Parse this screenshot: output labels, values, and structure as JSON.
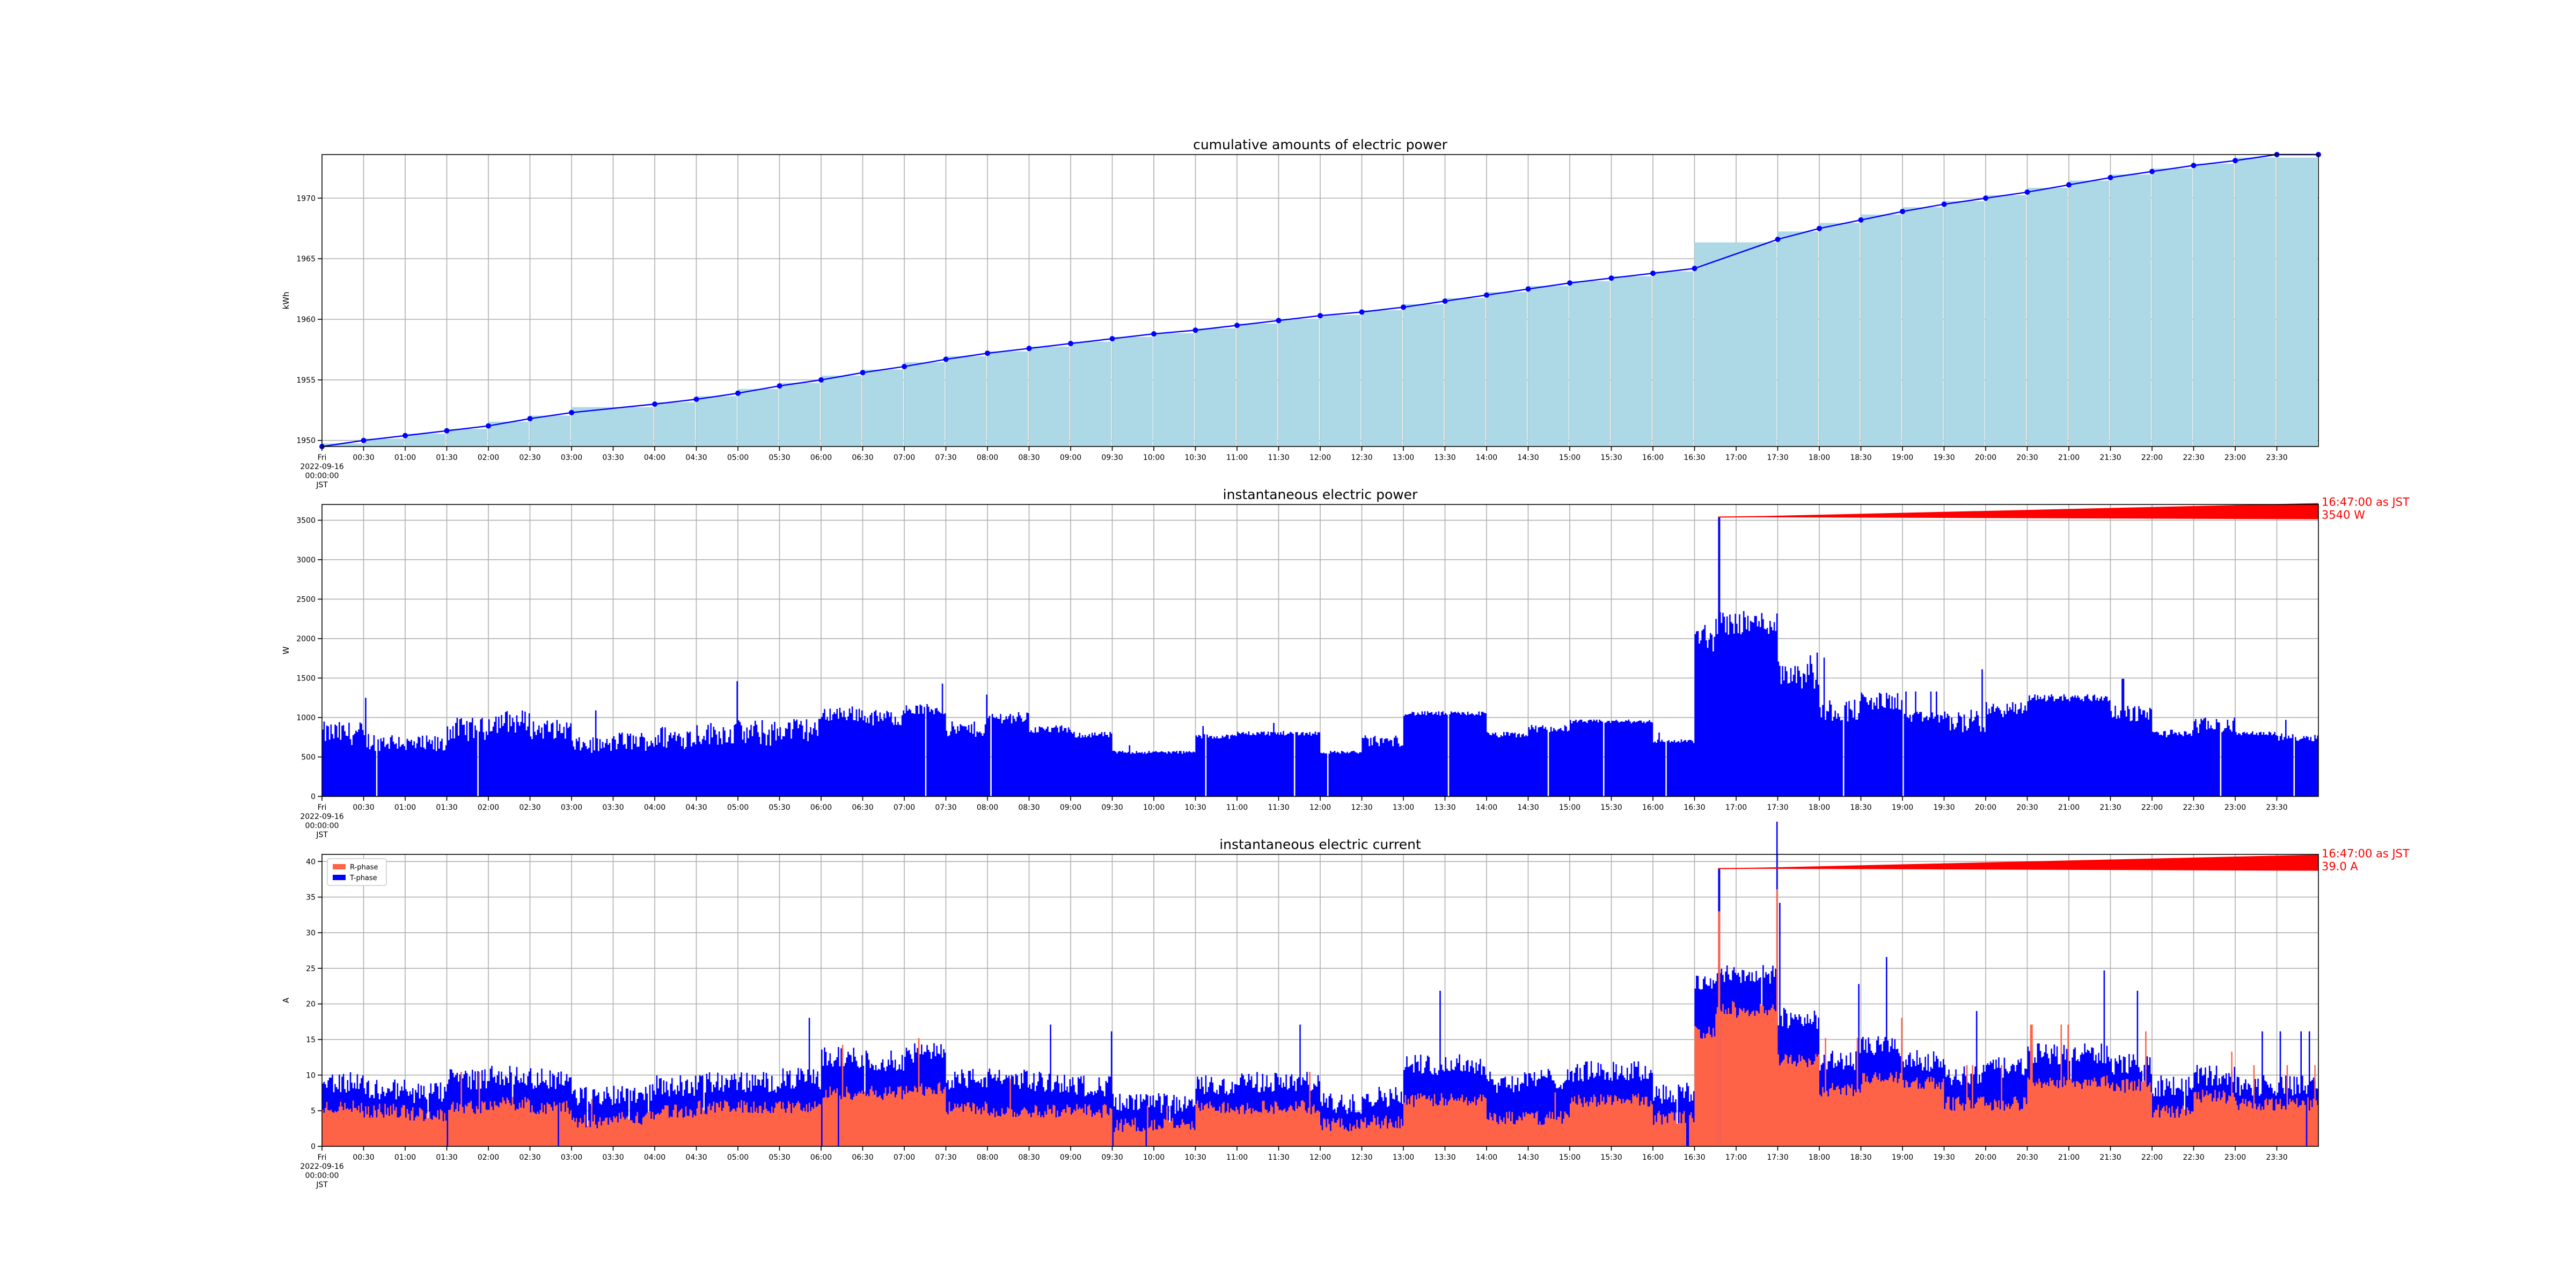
{
  "x_ticks": [
    "00:30",
    "01:00",
    "01:30",
    "02:00",
    "02:30",
    "03:00",
    "03:30",
    "04:00",
    "04:30",
    "05:00",
    "05:30",
    "06:00",
    "06:30",
    "07:00",
    "07:30",
    "08:00",
    "08:30",
    "09:00",
    "09:30",
    "10:00",
    "10:30",
    "11:00",
    "11:30",
    "12:00",
    "12:30",
    "13:00",
    "13:30",
    "14:00",
    "14:30",
    "15:00",
    "15:30",
    "16:00",
    "16:30",
    "17:00",
    "17:30",
    "18:00",
    "18:30",
    "19:00",
    "19:30",
    "20:00",
    "20:30",
    "21:00",
    "21:30",
    "22:00",
    "22:30",
    "23:00",
    "23:30"
  ],
  "x_start_label": [
    "Fri",
    "2022-09-16",
    "00:00:00",
    "JST"
  ],
  "colors": {
    "cumulative_fill": "#add8e6",
    "line": "#0000ff",
    "r_phase": "#ff6347",
    "t_phase": "#0000ff",
    "annotation": "#ff0000"
  },
  "chart_data": [
    {
      "type": "bar",
      "title": "cumulative amounts of electric power",
      "ylabel": "kWh",
      "xlabel": "",
      "grid": true,
      "x_range_hours": [
        0,
        24
      ],
      "ylim": [
        1949.5,
        1973.6
      ],
      "yticks": [
        1950,
        1955,
        1960,
        1965,
        1970
      ],
      "x_hours": [
        0,
        0.5,
        1,
        1.5,
        2,
        2.5,
        3,
        4,
        4.5,
        5,
        5.5,
        6,
        6.5,
        7,
        7.5,
        8,
        8.5,
        9,
        9.5,
        10,
        10.5,
        11,
        11.5,
        12,
        12.5,
        13,
        13.5,
        14,
        14.5,
        15,
        15.5,
        16,
        16.5,
        17.5,
        18,
        18.5,
        19,
        19.5,
        20,
        20.5,
        21,
        21.5,
        22,
        22.5,
        23,
        23.5,
        24
      ],
      "values": [
        1949.5,
        1950.0,
        1950.4,
        1950.8,
        1951.2,
        1951.8,
        1952.3,
        1953.0,
        1953.4,
        1953.9,
        1954.5,
        1955.0,
        1955.6,
        1956.1,
        1956.7,
        1957.2,
        1957.6,
        1958.0,
        1958.4,
        1958.8,
        1959.1,
        1959.5,
        1959.9,
        1960.3,
        1960.6,
        1961.0,
        1961.5,
        1962.0,
        1962.5,
        1963.0,
        1963.4,
        1963.8,
        1964.2,
        1966.6,
        1967.5,
        1968.2,
        1968.9,
        1969.5,
        1970.0,
        1970.5,
        1971.1,
        1971.7,
        1972.2,
        1972.7,
        1973.1,
        1973.6,
        1973.6
      ]
    },
    {
      "type": "bar",
      "title": "instantaneous electric power",
      "ylabel": "W",
      "xlabel": "",
      "grid": true,
      "x_range_hours": [
        0,
        24
      ],
      "ylim": [
        0,
        3700
      ],
      "yticks": [
        0,
        500,
        1000,
        1500,
        2000,
        2500,
        3000,
        3500
      ],
      "annotation": {
        "text": [
          "16:47:00 as JST",
          "3540 W"
        ],
        "x_hour": 16.783,
        "y": 3540
      },
      "segments": [
        [
          0,
          0.5,
          800,
          300
        ],
        [
          0.5,
          1,
          700,
          250
        ],
        [
          1,
          1.5,
          650,
          250
        ],
        [
          1.5,
          2,
          850,
          300
        ],
        [
          2,
          2.5,
          950,
          300
        ],
        [
          2.5,
          3,
          850,
          250
        ],
        [
          3,
          3.5,
          650,
          200
        ],
        [
          3.5,
          4,
          700,
          250
        ],
        [
          4,
          4.5,
          750,
          300
        ],
        [
          4.5,
          5,
          800,
          300
        ],
        [
          5,
          5.5,
          800,
          350
        ],
        [
          5.5,
          6,
          850,
          300
        ],
        [
          6,
          6.5,
          1050,
          200
        ],
        [
          6.5,
          7,
          1000,
          200
        ],
        [
          7,
          7.5,
          1100,
          150
        ],
        [
          7.5,
          8,
          850,
          200
        ],
        [
          8,
          8.5,
          1000,
          150
        ],
        [
          8.5,
          9,
          850,
          100
        ],
        [
          9,
          9.5,
          780,
          80
        ],
        [
          9.5,
          10,
          560,
          40
        ],
        [
          10,
          10.5,
          560,
          40
        ],
        [
          10.5,
          11,
          760,
          60
        ],
        [
          11,
          11.5,
          800,
          60
        ],
        [
          11.5,
          12,
          800,
          60
        ],
        [
          12,
          12.5,
          560,
          40
        ],
        [
          12.5,
          13,
          700,
          150
        ],
        [
          13,
          13.5,
          1050,
          60
        ],
        [
          13.5,
          14,
          1050,
          60
        ],
        [
          14,
          14.5,
          780,
          80
        ],
        [
          14.5,
          15,
          860,
          100
        ],
        [
          15,
          15.5,
          950,
          50
        ],
        [
          15.5,
          16,
          950,
          50
        ],
        [
          16,
          16.5,
          700,
          50
        ],
        [
          16.5,
          16.75,
          2000,
          400
        ],
        [
          16.75,
          17,
          2200,
          300
        ],
        [
          17,
          17.5,
          2200,
          300
        ],
        [
          17.5,
          18,
          1600,
          500
        ],
        [
          18,
          18.5,
          1100,
          300
        ],
        [
          18.5,
          19,
          1200,
          250
        ],
        [
          19,
          19.5,
          1000,
          150
        ],
        [
          19.5,
          20,
          950,
          300
        ],
        [
          20,
          20.5,
          1100,
          200
        ],
        [
          20.5,
          21,
          1250,
          100
        ],
        [
          21,
          21.5,
          1250,
          100
        ],
        [
          21.5,
          22,
          1050,
          200
        ],
        [
          22,
          22.5,
          800,
          100
        ],
        [
          22.5,
          23,
          900,
          200
        ],
        [
          23,
          23.5,
          800,
          50
        ],
        [
          23.5,
          24,
          750,
          100
        ]
      ]
    },
    {
      "type": "bar",
      "title": "instantaneous electric current",
      "ylabel": "A",
      "xlabel": "",
      "grid": true,
      "x_range_hours": [
        0,
        24
      ],
      "ylim": [
        0,
        41
      ],
      "yticks": [
        0,
        5,
        10,
        15,
        20,
        25,
        30,
        35,
        40
      ],
      "legend": {
        "position": "upper left",
        "entries": [
          "R-phase",
          "T-phase"
        ]
      },
      "annotation": {
        "text": [
          "16:47:00 as JST",
          "39.0 A"
        ],
        "x_hour": 16.783,
        "y": 39.0
      },
      "series": [
        {
          "name": "R-phase",
          "segments": [
            [
              0,
              0.5,
              5.5
            ],
            [
              0.5,
              1,
              5
            ],
            [
              1,
              1.5,
              4.5
            ],
            [
              1.5,
              2,
              5.5
            ],
            [
              2,
              2.5,
              6
            ],
            [
              2.5,
              3,
              5.5
            ],
            [
              3,
              3.5,
              3.5
            ],
            [
              3.5,
              4,
              4
            ],
            [
              4,
              4.5,
              5
            ],
            [
              4.5,
              5,
              5.5
            ],
            [
              5,
              5.5,
              5.5
            ],
            [
              5.5,
              6,
              5.5
            ],
            [
              6,
              6.5,
              7.5
            ],
            [
              6.5,
              7,
              7.5
            ],
            [
              7,
              7.5,
              8
            ],
            [
              7.5,
              8,
              5.5
            ],
            [
              8,
              8.5,
              5
            ],
            [
              8.5,
              9,
              5
            ],
            [
              9,
              9.5,
              5
            ],
            [
              9.5,
              10,
              3
            ],
            [
              10,
              10.5,
              3
            ],
            [
              10.5,
              11,
              5.5
            ],
            [
              11,
              11.5,
              5.5
            ],
            [
              11.5,
              12,
              5.5
            ],
            [
              12,
              12.5,
              3
            ],
            [
              12.5,
              13,
              3.5
            ],
            [
              13,
              13.5,
              6.5
            ],
            [
              13.5,
              14,
              6.5
            ],
            [
              14,
              14.5,
              4
            ],
            [
              14.5,
              15,
              4
            ],
            [
              15,
              15.5,
              6.5
            ],
            [
              15.5,
              16,
              6.5
            ],
            [
              16,
              16.5,
              4
            ],
            [
              16.5,
              16.75,
              16
            ],
            [
              16.75,
              17,
              19.5
            ],
            [
              17,
              17.5,
              19
            ],
            [
              17.5,
              18,
              12
            ],
            [
              18,
              18.5,
              8
            ],
            [
              18.5,
              19,
              9.5
            ],
            [
              19,
              19.5,
              9
            ],
            [
              19.5,
              20,
              6
            ],
            [
              20,
              20.5,
              6
            ],
            [
              20.5,
              21,
              9
            ],
            [
              21,
              21.5,
              9
            ],
            [
              21.5,
              22,
              8.5
            ],
            [
              22,
              22.5,
              5
            ],
            [
              22.5,
              23,
              7
            ],
            [
              23,
              23.5,
              6
            ],
            [
              23.5,
              24,
              6
            ]
          ]
        },
        {
          "name": "T-phase",
          "segments": [
            [
              0,
              0.5,
              9
            ],
            [
              0.5,
              1,
              8
            ],
            [
              1,
              1.5,
              7.5
            ],
            [
              1.5,
              2,
              9.5
            ],
            [
              2,
              2.5,
              10
            ],
            [
              2.5,
              3,
              9.5
            ],
            [
              3,
              3.5,
              7
            ],
            [
              3.5,
              4,
              7.5
            ],
            [
              4,
              4.5,
              8.5
            ],
            [
              4.5,
              5,
              9
            ],
            [
              5,
              5.5,
              9
            ],
            [
              5.5,
              6,
              9.5
            ],
            [
              6,
              6.5,
              12.5
            ],
            [
              6.5,
              7,
              12
            ],
            [
              7,
              7.5,
              13
            ],
            [
              7.5,
              8,
              9.5
            ],
            [
              8,
              8.5,
              9.5
            ],
            [
              8.5,
              9,
              9
            ],
            [
              9,
              9.5,
              8.5
            ],
            [
              9.5,
              10,
              6
            ],
            [
              10,
              10.5,
              6
            ],
            [
              10.5,
              11,
              8.5
            ],
            [
              11,
              11.5,
              9
            ],
            [
              11.5,
              12,
              9
            ],
            [
              12,
              12.5,
              6
            ],
            [
              12.5,
              13,
              7
            ],
            [
              13,
              13.5,
              11.5
            ],
            [
              13.5,
              14,
              11.5
            ],
            [
              14,
              14.5,
              9
            ],
            [
              14.5,
              15,
              9.5
            ],
            [
              15,
              15.5,
              10.5
            ],
            [
              15.5,
              16,
              10.5
            ],
            [
              16,
              16.5,
              7.5
            ],
            [
              16.5,
              16.75,
              23
            ],
            [
              16.75,
              17,
              24.5
            ],
            [
              17,
              17.5,
              24
            ],
            [
              17.5,
              18,
              18
            ],
            [
              18,
              18.5,
              12
            ],
            [
              18.5,
              19,
              14
            ],
            [
              19,
              19.5,
              12
            ],
            [
              19.5,
              20,
              10
            ],
            [
              20,
              20.5,
              11
            ],
            [
              20.5,
              21,
              13
            ],
            [
              21,
              21.5,
              13
            ],
            [
              21.5,
              22,
              11.5
            ],
            [
              22,
              22.5,
              8.5
            ],
            [
              22.5,
              23,
              10
            ],
            [
              23,
              23.5,
              8.5
            ],
            [
              23.5,
              24,
              8.5
            ]
          ]
        }
      ]
    }
  ]
}
